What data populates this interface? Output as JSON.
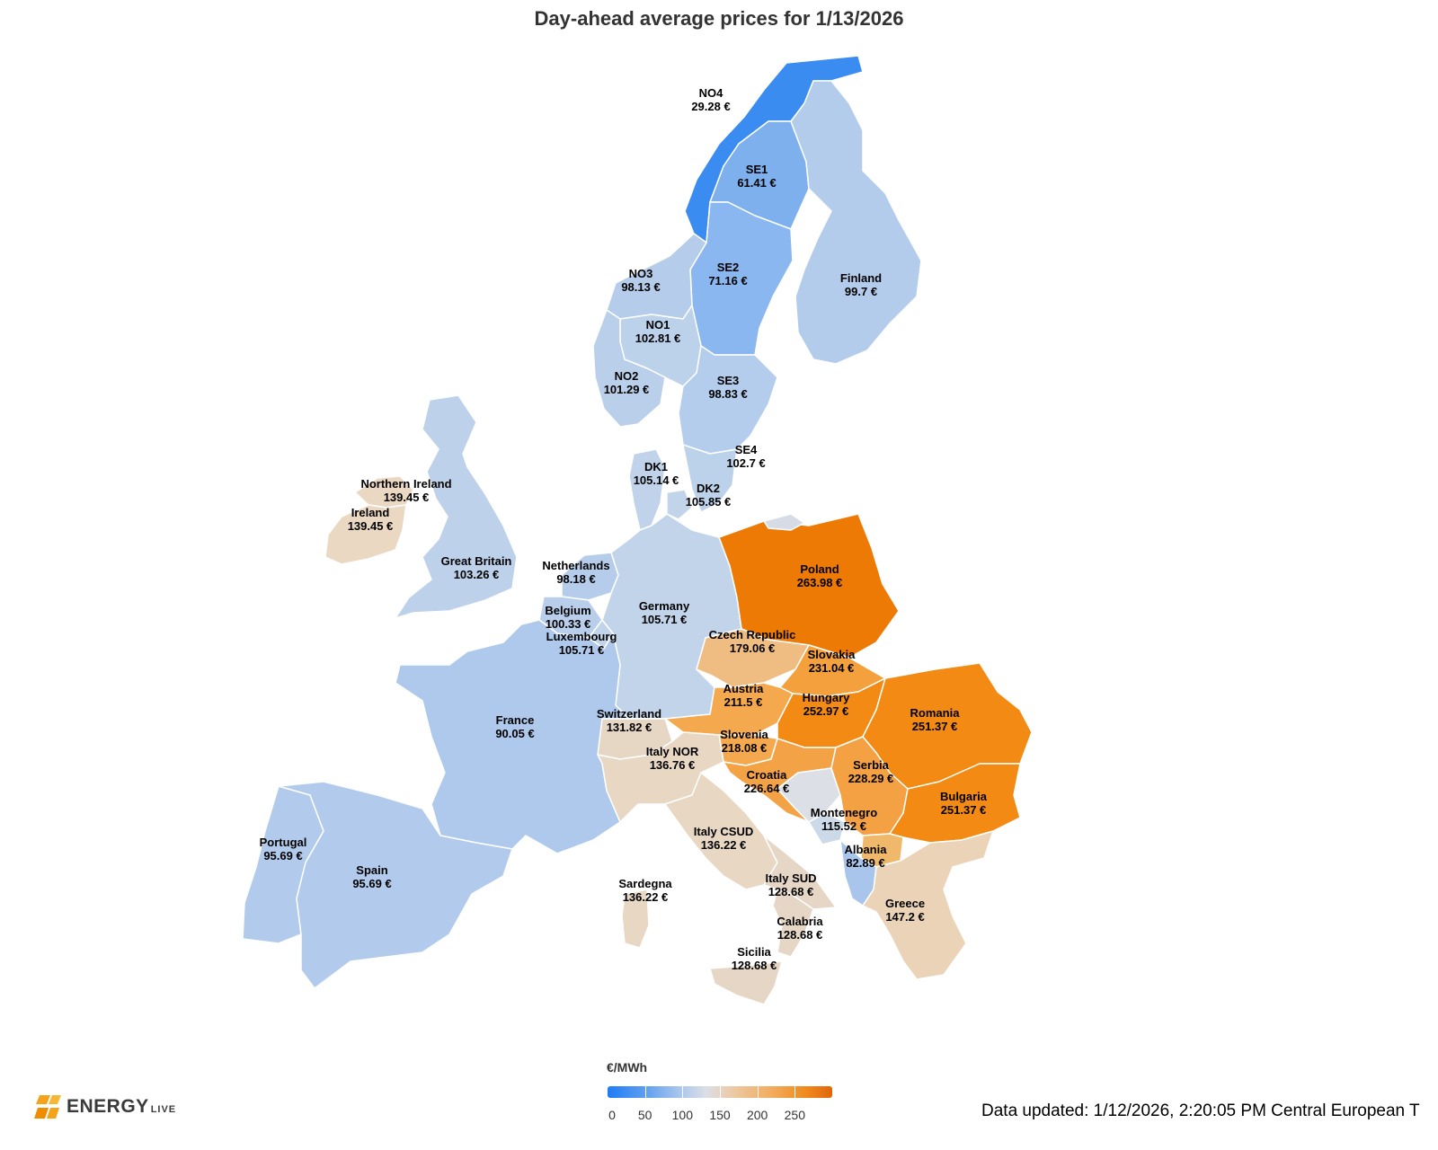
{
  "title": "Day-ahead average prices for 1/13/2026",
  "legend": {
    "unit": "€/MWh",
    "ticks": [
      "0",
      "50",
      "100",
      "150",
      "200",
      "250"
    ],
    "tick_values": [
      0,
      50,
      100,
      150,
      200,
      250
    ],
    "max": 300,
    "gradient_colors": [
      "#1f7cf5",
      "#5b9cf0",
      "#a9c6ec",
      "#dcdfe6",
      "#ecc9a4",
      "#f2ae62",
      "#f08b1e",
      "#e0650a"
    ]
  },
  "logo": {
    "word": "ENERGY",
    "sub": "LIVE",
    "icon": "energylive-logo-icon",
    "color": "#f5a31a"
  },
  "updated": "Data updated: 1/12/2026, 2:20:05 PM Central European T",
  "regions": [
    {
      "id": "NO4",
      "name": "NO4",
      "price": "29.28 €",
      "color": "#3a8cf0"
    },
    {
      "id": "SE1",
      "name": "SE1",
      "price": "61.41 €",
      "color": "#7fb0ee"
    },
    {
      "id": "SE2",
      "name": "SE2",
      "price": "71.16 €",
      "color": "#8ab7ef"
    },
    {
      "id": "NO3",
      "name": "NO3",
      "price": "98.13 €",
      "color": "#b5cdeb"
    },
    {
      "id": "Finland",
      "name": "Finland",
      "price": "99.7 €",
      "color": "#b3ccec"
    },
    {
      "id": "NO1",
      "name": "NO1",
      "price": "102.81 €",
      "color": "#bcd1ea"
    },
    {
      "id": "NO2",
      "name": "NO2",
      "price": "101.29 €",
      "color": "#bad0ea"
    },
    {
      "id": "SE3",
      "name": "SE3",
      "price": "98.83 €",
      "color": "#b4cdec"
    },
    {
      "id": "SE4",
      "name": "SE4",
      "price": "102.7 €",
      "color": "#bcd1ea"
    },
    {
      "id": "DK1",
      "name": "DK1",
      "price": "105.14 €",
      "color": "#c0d3ea"
    },
    {
      "id": "DK2",
      "name": "DK2",
      "price": "105.85 €",
      "color": "#c1d4ea"
    },
    {
      "id": "NorthernIreland",
      "name": "Northern Ireland",
      "price": "139.45 €",
      "color": "#ead8c2"
    },
    {
      "id": "Ireland",
      "name": "Ireland",
      "price": "139.45 €",
      "color": "#ead8c2"
    },
    {
      "id": "GreatBritain",
      "name": "Great Britain",
      "price": "103.26 €",
      "color": "#bdd1ea"
    },
    {
      "id": "Netherlands",
      "name": "Netherlands",
      "price": "98.18 €",
      "color": "#b5cdeb"
    },
    {
      "id": "Belgium",
      "name": "Belgium",
      "price": "100.33 €",
      "color": "#b8ceeb"
    },
    {
      "id": "Luxembourg",
      "name": "Luxembourg",
      "price": "105.71 €",
      "color": "#c1d4ea"
    },
    {
      "id": "Germany",
      "name": "Germany",
      "price": "105.71 €",
      "color": "#c1d4ea"
    },
    {
      "id": "Poland",
      "name": "Poland",
      "price": "263.98 €",
      "color": "#ed7a04"
    },
    {
      "id": "CzechRepublic",
      "name": "Czech Republic",
      "price": "179.06 €",
      "color": "#efbc82"
    },
    {
      "id": "Slovakia",
      "name": "Slovakia",
      "price": "231.04 €",
      "color": "#f4a03c"
    },
    {
      "id": "Austria",
      "name": "Austria",
      "price": "211.5 €",
      "color": "#f4a94e"
    },
    {
      "id": "Hungary",
      "name": "Hungary",
      "price": "252.97 €",
      "color": "#f28a14"
    },
    {
      "id": "Romania",
      "name": "Romania",
      "price": "251.37 €",
      "color": "#f28a14"
    },
    {
      "id": "France",
      "name": "France",
      "price": "90.05 €",
      "color": "#aec9ec"
    },
    {
      "id": "Switzerland",
      "name": "Switzerland",
      "price": "131.82 €",
      "color": "#e6d6c4"
    },
    {
      "id": "Slovenia",
      "name": "Slovenia",
      "price": "218.08 €",
      "color": "#f4a94e"
    },
    {
      "id": "ItalyNOR",
      "name": "Italy NOR",
      "price": "136.76 €",
      "color": "#e8d7c3"
    },
    {
      "id": "Croatia",
      "name": "Croatia",
      "price": "226.64 €",
      "color": "#f4a246"
    },
    {
      "id": "Serbia",
      "name": "Serbia",
      "price": "228.29 €",
      "color": "#f4a144"
    },
    {
      "id": "Bulgaria",
      "name": "Bulgaria",
      "price": "251.37 €",
      "color": "#f28a14"
    },
    {
      "id": "Montenegro",
      "name": "Montenegro",
      "price": "115.52 €",
      "color": "#ccd9e8"
    },
    {
      "id": "Portugal",
      "name": "Portugal",
      "price": "95.69 €",
      "color": "#b2cbec"
    },
    {
      "id": "Spain",
      "name": "Spain",
      "price": "95.69 €",
      "color": "#b2cbec"
    },
    {
      "id": "ItalyCSUD",
      "name": "Italy CSUD",
      "price": "136.22 €",
      "color": "#e8d7c3"
    },
    {
      "id": "Albania",
      "name": "Albania",
      "price": "82.89 €",
      "color": "#a9c5ec"
    },
    {
      "id": "ItalySUD",
      "name": "Italy SUD",
      "price": "128.68 €",
      "color": "#e5d6c5"
    },
    {
      "id": "Sardegna",
      "name": "Sardegna",
      "price": "136.22 €",
      "color": "#e8d7c3"
    },
    {
      "id": "Greece",
      "name": "Greece",
      "price": "147.2 €",
      "color": "#ebd3b8"
    },
    {
      "id": "Calabria",
      "name": "Calabria",
      "price": "128.68 €",
      "color": "#e5d6c5"
    },
    {
      "id": "Sicilia",
      "name": "Sicilia",
      "price": "128.68 €",
      "color": "#e5d6c5"
    },
    {
      "id": "Macedonia",
      "name": "",
      "price": "",
      "color": "#f0b86a"
    },
    {
      "id": "Bosnia",
      "name": "",
      "price": "",
      "color": "#dcdfe6"
    },
    {
      "id": "Kaliningrad",
      "name": "",
      "price": "",
      "color": "#d7dbe6"
    }
  ]
}
